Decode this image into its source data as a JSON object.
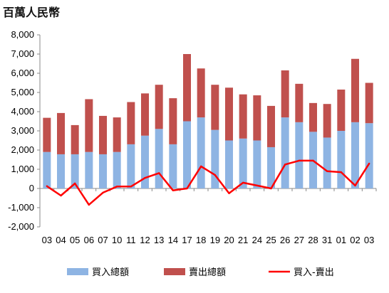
{
  "unit_label": "百萬人民幣",
  "chart_data": {
    "type": "bar",
    "stacked": true,
    "categories": [
      "03",
      "04",
      "05",
      "06",
      "07",
      "10",
      "11",
      "12",
      "13",
      "14",
      "17",
      "18",
      "19",
      "20",
      "21",
      "24",
      "25",
      "26",
      "27",
      "28",
      "31",
      "01",
      "02",
      "03"
    ],
    "series": [
      {
        "name": "買入總額",
        "type": "bar",
        "color": "#8eb4e3",
        "values": [
          1900,
          1780,
          1780,
          1900,
          1780,
          1900,
          2300,
          2750,
          3100,
          2300,
          3500,
          3700,
          3050,
          2500,
          2600,
          2500,
          2150,
          3700,
          3450,
          2950,
          2650,
          3000,
          3450,
          3400
        ]
      },
      {
        "name": "賣出總額",
        "type": "bar",
        "color": "#c0504d",
        "values": [
          1780,
          2150,
          1520,
          2750,
          2000,
          1800,
          2200,
          2200,
          2300,
          2400,
          3500,
          2550,
          2350,
          2750,
          2300,
          2350,
          2150,
          2450,
          2000,
          1500,
          1750,
          2150,
          3300,
          2100
        ]
      },
      {
        "name": "買入-賣出",
        "type": "line",
        "color": "#ff0000",
        "values": [
          120,
          -370,
          260,
          -850,
          -220,
          100,
          100,
          550,
          800,
          -100,
          0,
          1150,
          700,
          -250,
          300,
          150,
          0,
          1250,
          1450,
          1450,
          900,
          850,
          150,
          1300
        ]
      }
    ],
    "ylim": [
      -2000,
      8000
    ],
    "yticks": [
      "-2,000",
      "-1,000",
      "0",
      "1,000",
      "2,000",
      "3,000",
      "4,000",
      "5,000",
      "6,000",
      "7,000",
      "8,000"
    ],
    "yticks_values": [
      -2000,
      -1000,
      0,
      1000,
      2000,
      3000,
      4000,
      5000,
      6000,
      7000,
      8000
    ],
    "grid": false,
    "legend_position": "bottom"
  }
}
